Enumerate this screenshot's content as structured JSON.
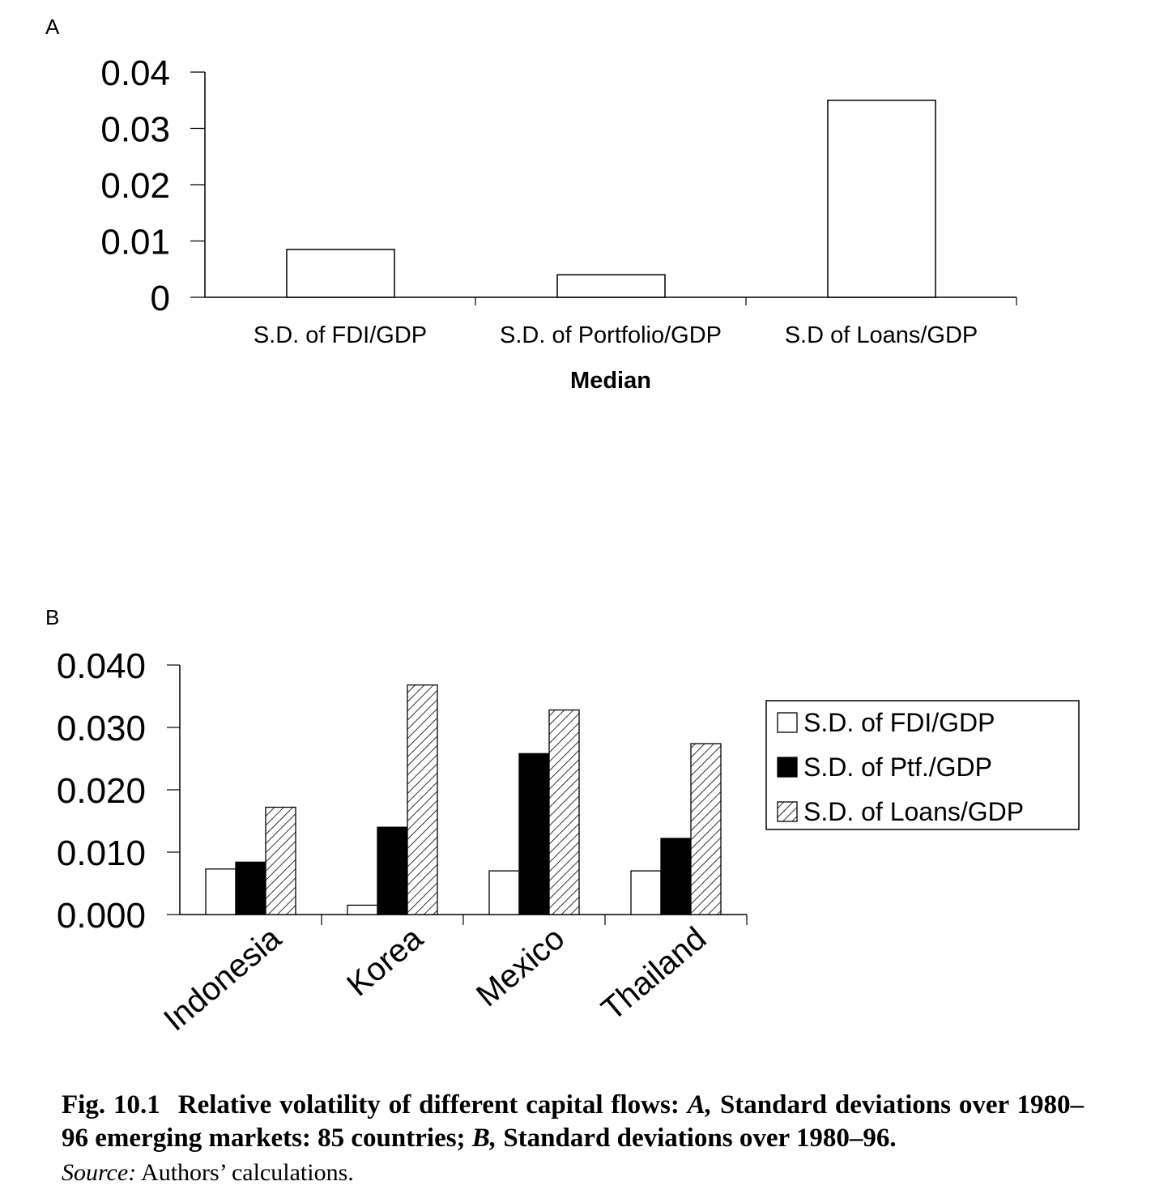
{
  "panels": {
    "a_label": "A",
    "b_label": "B"
  },
  "chart_data": [
    {
      "type": "bar",
      "panel": "A",
      "categories": [
        "S.D. of FDI/GDP",
        "S.D. of Portfolio/GDP",
        "S.D of Loans/GDP"
      ],
      "values": [
        0.0085,
        0.004,
        0.035
      ],
      "title": "",
      "xlabel": "Median",
      "ylabel": "",
      "ylim": [
        0,
        0.04
      ],
      "yticks": [
        "0",
        "0.01",
        "0.02",
        "0.03",
        "0.04"
      ],
      "grid": false
    },
    {
      "type": "bar",
      "panel": "B",
      "categories": [
        "Indonesia",
        "Korea",
        "Mexico",
        "Thailand"
      ],
      "series": [
        {
          "name": "S.D. of FDI/GDP",
          "values": [
            0.0073,
            0.0015,
            0.007,
            0.007
          ],
          "fill": "#ffffff"
        },
        {
          "name": "S.D. of Ptf./GDP",
          "values": [
            0.0084,
            0.014,
            0.0258,
            0.0122
          ],
          "fill": "#000000"
        },
        {
          "name": "S.D. of Loans/GDP",
          "values": [
            0.0172,
            0.0368,
            0.0328,
            0.0274
          ],
          "fill": "hatched"
        }
      ],
      "title": "",
      "xlabel": "",
      "ylabel": "",
      "ylim": [
        0,
        0.04
      ],
      "yticks": [
        "0.000",
        "0.010",
        "0.020",
        "0.030",
        "0.040"
      ],
      "legend": "right",
      "grid": false
    }
  ],
  "caption": {
    "fig_num": "Fig. 10.1",
    "part1": "Relative volatility of different capital flows: ",
    "a": "A,",
    "part2": " Standard deviations over 1980–96 emerging markets: 85 countries; ",
    "b": "B,",
    "part3": " Standard deviations over 1980–96.",
    "source_label": "Source:",
    "source_text": " Authors’ calculations."
  }
}
